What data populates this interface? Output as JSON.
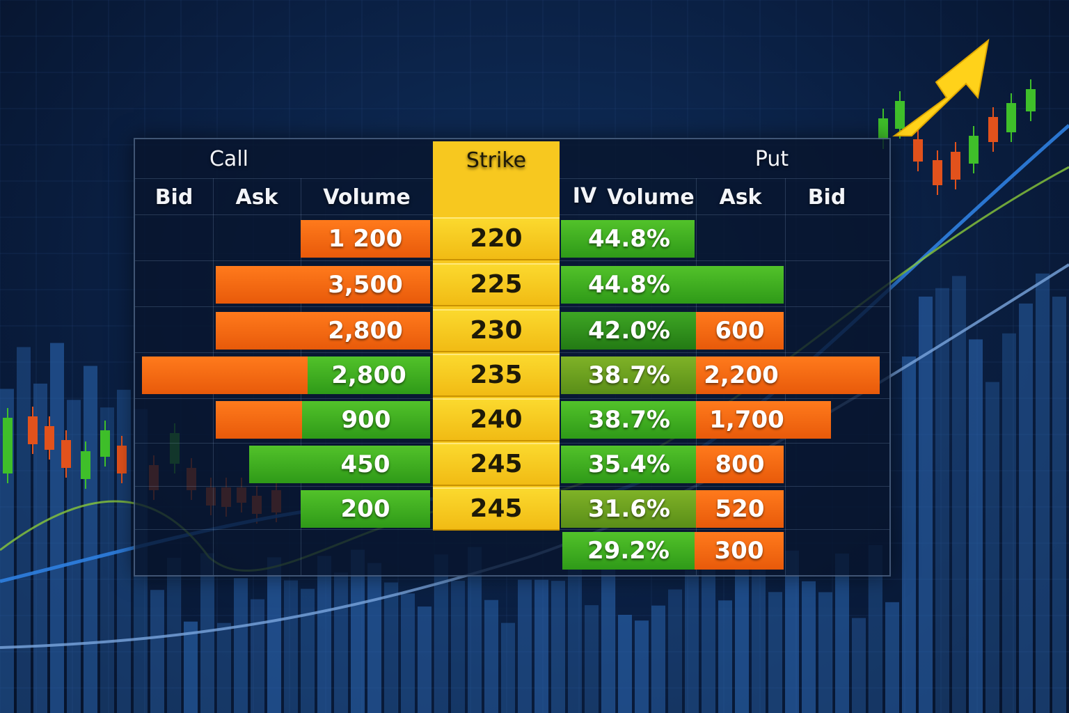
{
  "table": {
    "call_label": "Call",
    "put_label": "Put",
    "strike_label": "Strike",
    "call_columns": [
      "Bid",
      "Ask",
      "Volume"
    ],
    "put_columns": [
      "IV",
      "Volume",
      "Ask",
      "Bid"
    ],
    "rows": [
      {
        "strike": "220",
        "call_volume": "1 200",
        "iv": "44.8%",
        "put_ask": ""
      },
      {
        "strike": "225",
        "call_volume": "3,500",
        "iv": "44.8%",
        "put_ask": ""
      },
      {
        "strike": "230",
        "call_volume": "2,800",
        "iv": "42.0%",
        "put_ask": "600"
      },
      {
        "strike": "235",
        "call_volume": "2,800",
        "iv": "38.7%",
        "put_ask": "2,200"
      },
      {
        "strike": "240",
        "call_volume": "900",
        "iv": "38.7%",
        "put_ask": "1,700"
      },
      {
        "strike": "245",
        "call_volume": "450",
        "iv": "35.4%",
        "put_ask": "800"
      },
      {
        "strike": "245",
        "call_volume": "200",
        "iv": "31.6%",
        "put_ask": "520"
      },
      {
        "strike": "",
        "call_volume": "",
        "iv": "29.2%",
        "put_ask": "300"
      }
    ]
  },
  "colors": {
    "background": "#0a1f42",
    "strike_yellow": "#f7c81f",
    "bar_orange": "#f06a12",
    "bar_green": "#43b020",
    "arrow_yellow": "#ffd21a",
    "candle_green": "#3fbf2a",
    "candle_red": "#e2521c"
  },
  "icons": [
    "trend-up-arrow-icon"
  ]
}
